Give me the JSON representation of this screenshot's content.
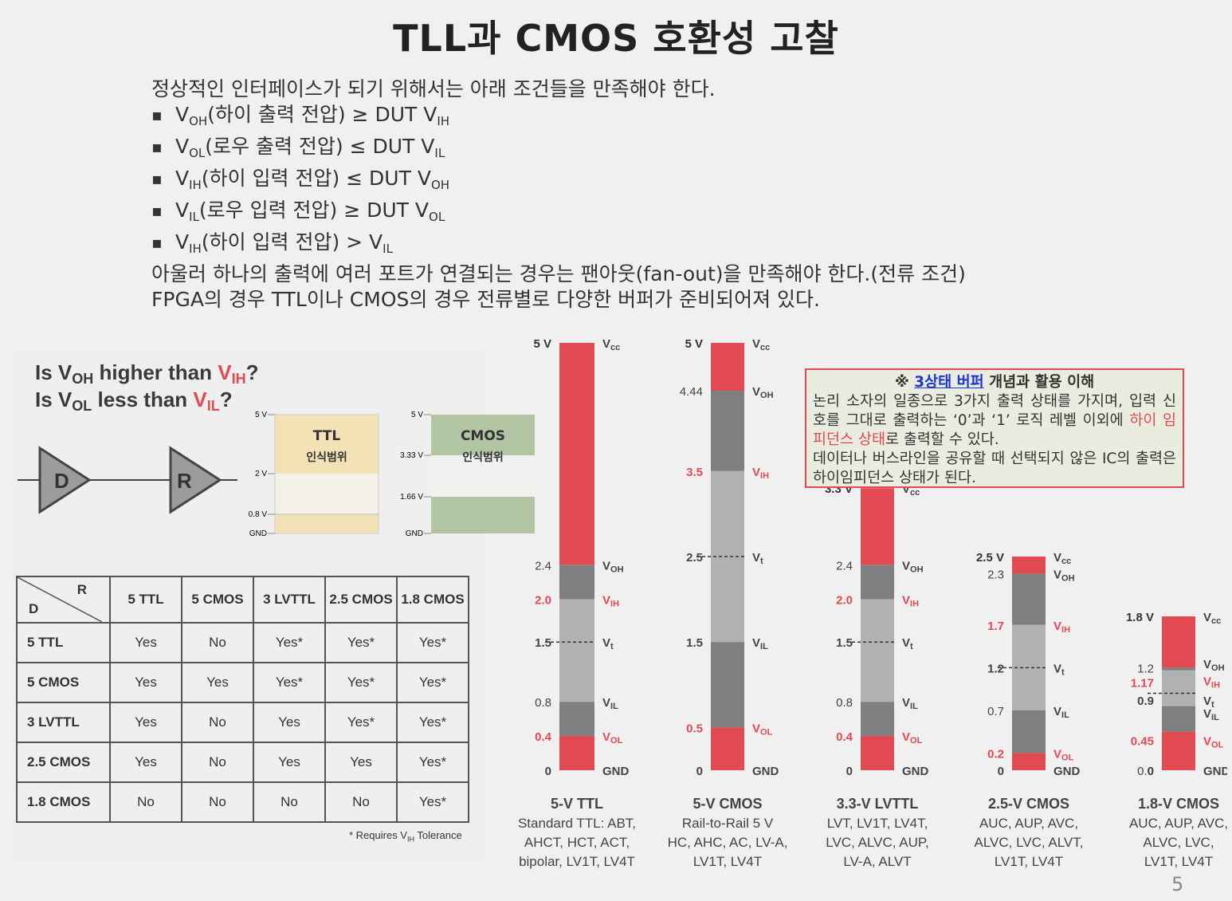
{
  "title": "TLL과 CMOS 호환성 고찰",
  "intro": {
    "line1": "정상적인 인터페이스가 되기 위해서는 아래 조건들을 만족해야 한다.",
    "conditions": [
      {
        "v": "V",
        "s1": "OH",
        "mid": "(하이 출력 전압) ≥ DUT V",
        "s2": "IH"
      },
      {
        "v": "V",
        "s1": "OL",
        "mid": "(로우 출력 전압) ≤ DUT V",
        "s2": "IL"
      },
      {
        "v": "V",
        "s1": "IH",
        "mid": "(하이 입력 전압) ≤ DUT V",
        "s2": "OH"
      },
      {
        "v": "V",
        "s1": "IL",
        "mid": "(로우 입력 전압) ≥ DUT V",
        "s2": "OL"
      },
      {
        "v": "V",
        "s1": "IH",
        "mid": "(하이 입력 전압) > V",
        "s2": "IL"
      }
    ],
    "line2": "아울러 하나의 출력에 여러 포트가 연결되는 경우는 팬아웃(fan-out)을 만족해야 한다.(전류 조건)",
    "line3": "FPGA의 경우 TTL이나 CMOS의 경우 전류별로 다양한 버퍼가 준비되어져 있다."
  },
  "left_figure": {
    "q1": {
      "a": "Is V",
      "s1": "OH",
      "b": " higher than ",
      "c": "V",
      "s2": "IH",
      "d": "?"
    },
    "q2": {
      "a": "Is V",
      "s1": "OL",
      "b": " less than ",
      "c": "V",
      "s2": "IL",
      "d": "?"
    },
    "driver": "D",
    "receiver": "R",
    "ttl_box": {
      "title": "TTL",
      "sub": "인식범위",
      "ticks": [
        "5 V",
        "2 V",
        "0.8 V",
        "GND"
      ]
    },
    "cmos_box": {
      "title": "CMOS",
      "sub": "인식범위",
      "ticks": [
        "5 V",
        "3.33 V",
        "1.66 V",
        "GND"
      ]
    },
    "table": {
      "corner_r": "R",
      "corner_d": "D",
      "columns": [
        "5 TTL",
        "5 CMOS",
        "3 LVTTL",
        "2.5 CMOS",
        "1.8 CMOS"
      ],
      "rows": [
        {
          "label": "5 TTL",
          "cells": [
            "Yes",
            "No",
            "Yes*",
            "Yes*",
            "Yes*"
          ]
        },
        {
          "label": "5 CMOS",
          "cells": [
            "Yes",
            "Yes",
            "Yes*",
            "Yes*",
            "Yes*"
          ]
        },
        {
          "label": "3 LVTTL",
          "cells": [
            "Yes",
            "No",
            "Yes",
            "Yes*",
            "Yes*"
          ]
        },
        {
          "label": "2.5 CMOS",
          "cells": [
            "Yes",
            "No",
            "Yes",
            "Yes",
            "Yes*"
          ]
        },
        {
          "label": "1.8 CMOS",
          "cells": [
            "No",
            "No",
            "No",
            "No",
            "Yes*"
          ]
        }
      ],
      "footnote_a": "* Requires V",
      "footnote_sub": "IH",
      "footnote_b": " Tolerance"
    }
  },
  "chart_data": {
    "type": "bar",
    "colors": {
      "red": "#e04a50",
      "dark": "#7f7f81",
      "light": "#b1b1b4"
    },
    "families": [
      {
        "name": "5-V TTL",
        "desc": [
          "Standard TTL: ABT,",
          "AHCT, HCT, ACT,",
          "bipolar, LV1T, LV4T"
        ],
        "vcc": 5,
        "voh": 2.4,
        "vih": 2.0,
        "vt": 1.5,
        "vil": 0.8,
        "vol": 0.4,
        "top_label": "5 V",
        "left_labels": [
          {
            "v": 2.4,
            "t": "2.4",
            "red": false
          },
          {
            "v": 2.0,
            "t": "2.0",
            "red": true
          },
          {
            "v": 1.5,
            "t": "1.5",
            "red": false
          },
          {
            "v": 0.8,
            "t": "0.8",
            "red": false
          },
          {
            "v": 0.4,
            "t": "0.4",
            "red": true
          },
          {
            "v": 0,
            "t": "0",
            "red": false
          }
        ]
      },
      {
        "name": "5-V CMOS",
        "desc": [
          "Rail-to-Rail 5 V",
          "HC, AHC, AC, LV-A,",
          "LV1T, LV4T"
        ],
        "vcc": 5,
        "voh": 4.44,
        "vih": 3.5,
        "vt": 2.5,
        "vil": 1.5,
        "vol": 0.5,
        "top_label": "5 V",
        "left_labels": [
          {
            "v": 4.44,
            "t": "4.44",
            "red": false
          },
          {
            "v": 3.5,
            "t": "3.5",
            "red": true
          },
          {
            "v": 2.5,
            "t": "2.5",
            "red": false
          },
          {
            "v": 1.5,
            "t": "1.5",
            "red": false
          },
          {
            "v": 0.5,
            "t": "0.5",
            "red": true
          },
          {
            "v": 0,
            "t": "0",
            "red": false
          }
        ]
      },
      {
        "name": "3.3-V LVTTL",
        "desc": [
          "LVT, LV1T, LV4T,",
          "LVC, ALVC, AUP,",
          "LV-A, ALVT"
        ],
        "vcc": 3.3,
        "voh": 2.4,
        "vih": 2.0,
        "vt": 1.5,
        "vil": 0.8,
        "vol": 0.4,
        "top_label": "3.3 V",
        "left_labels": [
          {
            "v": 2.4,
            "t": "2.4",
            "red": false
          },
          {
            "v": 2.0,
            "t": "2.0",
            "red": true
          },
          {
            "v": 1.5,
            "t": "1.5",
            "red": false
          },
          {
            "v": 0.8,
            "t": "0.8",
            "red": false
          },
          {
            "v": 0.4,
            "t": "0.4",
            "red": true
          },
          {
            "v": 0,
            "t": "0",
            "red": false
          }
        ]
      },
      {
        "name": "2.5-V CMOS",
        "desc": [
          "AUC, AUP, AVC,",
          "ALVC, LVC, ALVT,",
          "LV1T, LV4T"
        ],
        "vcc": 2.5,
        "voh": 2.3,
        "vih": 1.7,
        "vt": 1.2,
        "vil": 0.7,
        "vol": 0.2,
        "top_label": "2.5 V",
        "left_labels": [
          {
            "v": 2.3,
            "t": "2.3",
            "red": false
          },
          {
            "v": 1.7,
            "t": "1.7",
            "red": true
          },
          {
            "v": 1.2,
            "t": "1.2",
            "red": false
          },
          {
            "v": 0.7,
            "t": "0.7",
            "red": false
          },
          {
            "v": 0.2,
            "t": "0.2",
            "red": true
          },
          {
            "v": 0,
            "t": "0",
            "red": false
          }
        ]
      },
      {
        "name": "1.8-V CMOS",
        "desc": [
          "AUC, AUP, AVC,",
          "ALVC, LVC,",
          "LV1T, LV4T"
        ],
        "vcc": 1.8,
        "voh": 1.2,
        "vih": 1.17,
        "vt": 0.9,
        "vil": 0.0,
        "vol": 0.45,
        "top_label": "1.8 V",
        "left_labels": [
          {
            "v": 1.2,
            "t": "1.2",
            "red": false
          },
          {
            "v": 1.17,
            "t": "1.17",
            "red": true
          },
          {
            "v": 0.9,
            "t": "0.9",
            "red": false
          },
          {
            "v": 0.0,
            "t": "0.0",
            "red": false
          },
          {
            "v": 0.45,
            "t": "0.45",
            "red": true
          },
          {
            "v": 0,
            "t": "0",
            "red": false
          }
        ]
      }
    ],
    "right_labels": {
      "vcc": "Vcc",
      "voh": "VOH",
      "vih": "VIH",
      "vt": "Vt",
      "vil": "VIL",
      "vol": "VOL",
      "gnd": "GND"
    }
  },
  "infobox": {
    "mark": "※ ",
    "link": "3상태 버퍼",
    "heading_rest": " 개념과 활용 이해",
    "p1": "논리 소자의 일종으로 3가지 출력 상태를 가지며, 입력 신호를 그대로 출력하는 ‘0’과 ‘1’ 로직 레벨 이외에 ",
    "p1_highlight": "하이 임피던스 상태",
    "p1_end": "로 출력할 수 있다.",
    "p2": "데이터나 버스라인을 공유할 때 선택되지 않은 IC의 출력은 하이임피던스 상태가 된다."
  },
  "page_number": "5"
}
